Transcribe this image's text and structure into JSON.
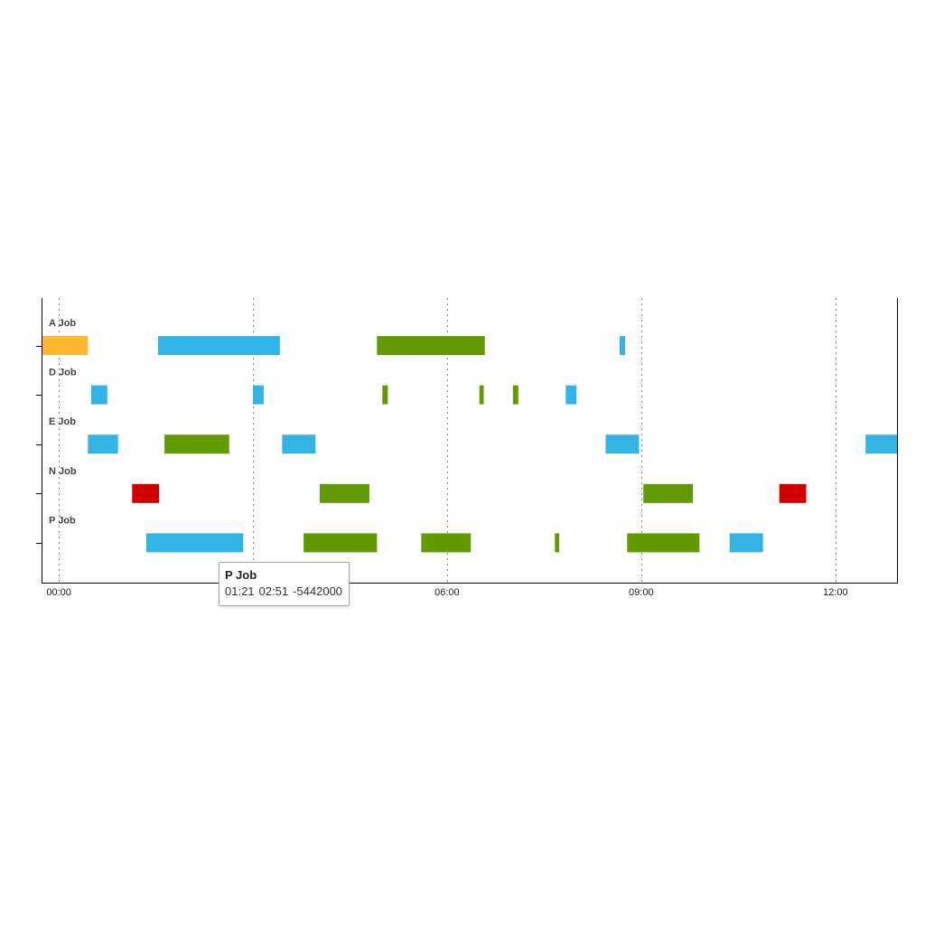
{
  "chart_data": {
    "type": "timeline",
    "x_range": [
      "-00:16",
      "12:58"
    ],
    "x_ticks": [
      "00:00",
      "06:00",
      "09:00",
      "12:00"
    ],
    "grid_x": [
      "00:00",
      "03:00",
      "06:00",
      "09:00",
      "12:00"
    ],
    "rows": [
      {
        "label": "A Job",
        "segments": [
          {
            "start": "-00:16",
            "end": "00:27",
            "color": "#ffb92e"
          },
          {
            "start": "01:32",
            "end": "03:25",
            "color": "#33b4e6"
          },
          {
            "start": "04:55",
            "end": "06:35",
            "color": "#639a00"
          },
          {
            "start": "08:40",
            "end": "08:45",
            "color": "#33b4e6"
          }
        ]
      },
      {
        "label": "D Job",
        "segments": [
          {
            "start": "00:30",
            "end": "00:45",
            "color": "#33b4e6"
          },
          {
            "start": "03:00",
            "end": "03:10",
            "color": "#33b4e6"
          },
          {
            "start": "05:00",
            "end": "05:05",
            "color": "#639a00"
          },
          {
            "start": "06:30",
            "end": "06:34",
            "color": "#639a00"
          },
          {
            "start": "07:01",
            "end": "07:06",
            "color": "#639a00"
          },
          {
            "start": "07:50",
            "end": "08:00",
            "color": "#33b4e6"
          }
        ]
      },
      {
        "label": "E Job",
        "segments": [
          {
            "start": "00:27",
            "end": "00:55",
            "color": "#33b4e6"
          },
          {
            "start": "01:38",
            "end": "02:38",
            "color": "#639a00"
          },
          {
            "start": "03:27",
            "end": "03:58",
            "color": "#33b4e6"
          },
          {
            "start": "08:27",
            "end": "08:58",
            "color": "#33b4e6"
          },
          {
            "start": "12:28",
            "end": "12:58",
            "color": "#33b4e6"
          }
        ]
      },
      {
        "label": "N Job",
        "segments": [
          {
            "start": "01:08",
            "end": "01:33",
            "color": "#d10000"
          },
          {
            "start": "04:02",
            "end": "04:48",
            "color": "#639a00"
          },
          {
            "start": "09:02",
            "end": "09:48",
            "color": "#639a00"
          },
          {
            "start": "11:08",
            "end": "11:33",
            "color": "#d10000"
          }
        ]
      },
      {
        "label": "P Job",
        "segments": [
          {
            "start": "01:21",
            "end": "02:51",
            "color": "#33b4e6"
          },
          {
            "start": "03:47",
            "end": "04:55",
            "color": "#639a00"
          },
          {
            "start": "05:36",
            "end": "06:22",
            "color": "#639a00"
          },
          {
            "start": "07:40",
            "end": "07:44",
            "color": "#639a00"
          },
          {
            "start": "08:47",
            "end": "09:54",
            "color": "#639a00"
          },
          {
            "start": "10:22",
            "end": "10:53",
            "color": "#33b4e6"
          }
        ]
      }
    ]
  },
  "tooltip": {
    "title": "P Job",
    "start": "01:21",
    "end": "02:51",
    "value": "-5442000"
  }
}
